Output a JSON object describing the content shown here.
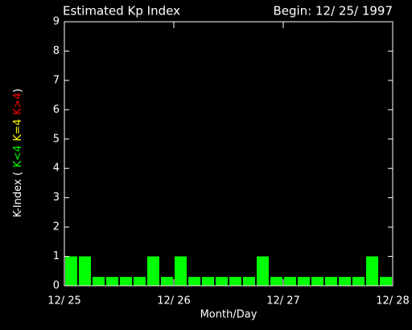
{
  "chart_data": {
    "type": "bar",
    "title": "Estimated Kp Index",
    "subtitle": "Begin: 12/ 25/ 1997",
    "xlabel": "Month/Day",
    "ylabel_parts": [
      {
        "text": "K-Index (",
        "color": "#ffffff"
      },
      {
        "text": "K<4",
        "color": "#00ff00"
      },
      {
        "text": "K=4",
        "color": "#ffff00"
      },
      {
        "text": "K>4",
        "color": "#ff0000"
      },
      {
        "text": ")",
        "color": "#ffffff"
      }
    ],
    "categories": [
      null,
      null,
      null,
      null,
      null,
      null,
      null,
      null,
      null,
      null,
      null,
      null,
      null,
      null,
      null,
      null,
      null,
      null,
      null,
      null,
      null,
      null,
      null,
      null
    ],
    "values": [
      1,
      1,
      0.3,
      0.3,
      0.3,
      0.3,
      1,
      0.3,
      1,
      0.3,
      0.3,
      0.3,
      0.3,
      0.3,
      1,
      0.3,
      0.3,
      0.3,
      0.3,
      0.3,
      0.3,
      0.3,
      1,
      0.3
    ],
    "color": "#00ff00",
    "xlim": [
      0,
      24
    ],
    "xticks": [
      {
        "value": 0,
        "label": "12/ 25"
      },
      {
        "value": 8,
        "label": "12/ 26"
      },
      {
        "value": 16,
        "label": "12/ 27"
      },
      {
        "value": 24,
        "label": "12/ 28"
      }
    ],
    "ylim": [
      0,
      9
    ],
    "yticks": [
      0,
      1,
      2,
      3,
      4,
      5,
      6,
      7,
      8,
      9
    ]
  }
}
